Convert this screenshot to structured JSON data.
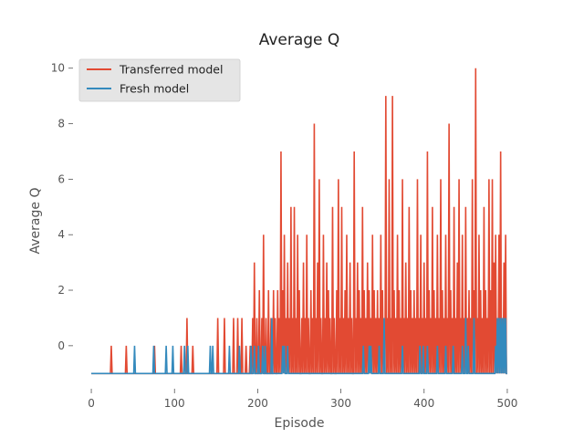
{
  "chart_data": {
    "type": "line",
    "title": "Average Q",
    "xlabel": "Episode",
    "ylabel": "Average Q",
    "xlim": [
      -22,
      522
    ],
    "ylim": [
      -1.55,
      10.55
    ],
    "xticks": [
      0,
      100,
      200,
      300,
      400,
      500
    ],
    "yticks": [
      0,
      2,
      4,
      6,
      8,
      10
    ],
    "grid": false,
    "legend_position": "top-left",
    "series": [
      {
        "name": "Transferred model",
        "color": "#e24a33",
        "spikes": [
          [
            24,
            0
          ],
          [
            42,
            0
          ],
          [
            76,
            0
          ],
          [
            108,
            0
          ],
          [
            115,
            1
          ],
          [
            122,
            0
          ],
          [
            152,
            1
          ],
          [
            160,
            1
          ],
          [
            171,
            1
          ],
          [
            176,
            1
          ],
          [
            181,
            1
          ],
          [
            186,
            0
          ],
          [
            191,
            0
          ],
          [
            194,
            1
          ],
          [
            196,
            3
          ],
          [
            199,
            1
          ],
          [
            202,
            2
          ],
          [
            205,
            1
          ],
          [
            207,
            4
          ],
          [
            210,
            1
          ],
          [
            213,
            2
          ],
          [
            216,
            1
          ],
          [
            219,
            2
          ],
          [
            221,
            1
          ],
          [
            224,
            2
          ],
          [
            226,
            1
          ],
          [
            228,
            7
          ],
          [
            230,
            2
          ],
          [
            232,
            4
          ],
          [
            234,
            1
          ],
          [
            236,
            3
          ],
          [
            238,
            1
          ],
          [
            240,
            5
          ],
          [
            242,
            1
          ],
          [
            244,
            5
          ],
          [
            246,
            1
          ],
          [
            248,
            4
          ],
          [
            250,
            2
          ],
          [
            253,
            1
          ],
          [
            255,
            3
          ],
          [
            257,
            1
          ],
          [
            259,
            4
          ],
          [
            261,
            1
          ],
          [
            264,
            2
          ],
          [
            266,
            1
          ],
          [
            268,
            8
          ],
          [
            270,
            1
          ],
          [
            272,
            3
          ],
          [
            274,
            6
          ],
          [
            276,
            1
          ],
          [
            279,
            4
          ],
          [
            281,
            1
          ],
          [
            283,
            3
          ],
          [
            285,
            2
          ],
          [
            287,
            1
          ],
          [
            290,
            5
          ],
          [
            292,
            1
          ],
          [
            295,
            2
          ],
          [
            297,
            6
          ],
          [
            299,
            1
          ],
          [
            301,
            5
          ],
          [
            303,
            1
          ],
          [
            305,
            2
          ],
          [
            307,
            4
          ],
          [
            309,
            1
          ],
          [
            311,
            3
          ],
          [
            313,
            1
          ],
          [
            316,
            7
          ],
          [
            318,
            1
          ],
          [
            320,
            3
          ],
          [
            322,
            2
          ],
          [
            324,
            1
          ],
          [
            326,
            5
          ],
          [
            328,
            2
          ],
          [
            330,
            1
          ],
          [
            332,
            3
          ],
          [
            334,
            2
          ],
          [
            336,
            1
          ],
          [
            338,
            4
          ],
          [
            340,
            2
          ],
          [
            342,
            1
          ],
          [
            344,
            2
          ],
          [
            346,
            1
          ],
          [
            348,
            4
          ],
          [
            350,
            2
          ],
          [
            352,
            1
          ],
          [
            354,
            9
          ],
          [
            356,
            1
          ],
          [
            358,
            6
          ],
          [
            360,
            1
          ],
          [
            362,
            9
          ],
          [
            364,
            2
          ],
          [
            366,
            1
          ],
          [
            368,
            4
          ],
          [
            370,
            2
          ],
          [
            372,
            1
          ],
          [
            374,
            6
          ],
          [
            376,
            1
          ],
          [
            378,
            3
          ],
          [
            380,
            1
          ],
          [
            382,
            5
          ],
          [
            384,
            2
          ],
          [
            386,
            1
          ],
          [
            388,
            2
          ],
          [
            390,
            1
          ],
          [
            392,
            6
          ],
          [
            394,
            1
          ],
          [
            396,
            4
          ],
          [
            398,
            1
          ],
          [
            400,
            3
          ],
          [
            402,
            1
          ],
          [
            404,
            7
          ],
          [
            406,
            2
          ],
          [
            408,
            1
          ],
          [
            410,
            5
          ],
          [
            412,
            2
          ],
          [
            414,
            1
          ],
          [
            416,
            4
          ],
          [
            418,
            1
          ],
          [
            420,
            6
          ],
          [
            422,
            2
          ],
          [
            424,
            1
          ],
          [
            426,
            4
          ],
          [
            428,
            1
          ],
          [
            430,
            8
          ],
          [
            432,
            2
          ],
          [
            434,
            1
          ],
          [
            436,
            5
          ],
          [
            438,
            1
          ],
          [
            440,
            3
          ],
          [
            442,
            6
          ],
          [
            444,
            1
          ],
          [
            446,
            4
          ],
          [
            448,
            1
          ],
          [
            450,
            5
          ],
          [
            452,
            1
          ],
          [
            454,
            2
          ],
          [
            456,
            1
          ],
          [
            458,
            6
          ],
          [
            460,
            2
          ],
          [
            462,
            10
          ],
          [
            464,
            1
          ],
          [
            466,
            4
          ],
          [
            468,
            2
          ],
          [
            470,
            1
          ],
          [
            472,
            5
          ],
          [
            474,
            2
          ],
          [
            476,
            1
          ],
          [
            478,
            6
          ],
          [
            480,
            2
          ],
          [
            482,
            6
          ],
          [
            484,
            3
          ],
          [
            486,
            4
          ],
          [
            488,
            1
          ],
          [
            490,
            4
          ],
          [
            492,
            7
          ],
          [
            494,
            1
          ],
          [
            496,
            3
          ],
          [
            498,
            4
          ]
        ]
      },
      {
        "name": "Fresh model",
        "color": "#348abd",
        "spikes": [
          [
            52,
            0
          ],
          [
            75,
            0
          ],
          [
            90,
            0
          ],
          [
            98,
            0
          ],
          [
            112,
            0
          ],
          [
            116,
            0
          ],
          [
            143,
            0
          ],
          [
            146,
            0
          ],
          [
            166,
            0
          ],
          [
            178,
            0
          ],
          [
            192,
            0
          ],
          [
            196,
            0
          ],
          [
            201,
            0
          ],
          [
            206,
            0
          ],
          [
            209,
            0
          ],
          [
            217,
            1
          ],
          [
            230,
            0
          ],
          [
            232,
            0
          ],
          [
            236,
            0
          ],
          [
            327,
            0
          ],
          [
            334,
            0
          ],
          [
            336,
            0
          ],
          [
            346,
            0
          ],
          [
            352,
            1
          ],
          [
            374,
            0
          ],
          [
            395,
            0
          ],
          [
            399,
            0
          ],
          [
            404,
            0
          ],
          [
            416,
            0
          ],
          [
            426,
            0
          ],
          [
            435,
            0
          ],
          [
            446,
            0
          ],
          [
            450,
            1
          ],
          [
            453,
            0
          ],
          [
            460,
            1
          ],
          [
            486,
            0
          ],
          [
            488,
            1
          ],
          [
            490,
            1
          ],
          [
            492,
            1
          ],
          [
            494,
            1
          ],
          [
            496,
            1
          ],
          [
            498,
            1
          ]
        ]
      }
    ]
  }
}
